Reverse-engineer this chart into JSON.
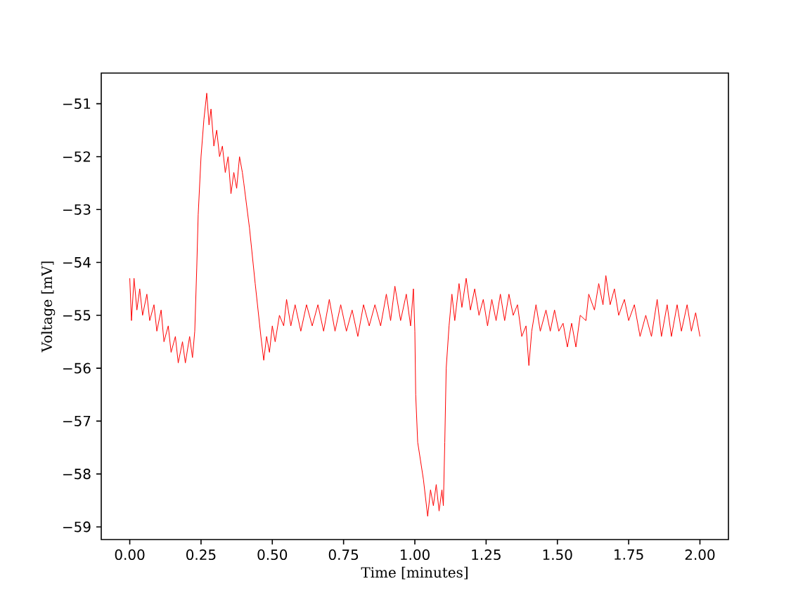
{
  "chart_data": {
    "type": "line",
    "xlabel": "Time [minutes]",
    "ylabel": "Voltage [mV]",
    "color": "#ff0000",
    "xlim": [
      -0.1,
      2.1
    ],
    "ylim": [
      -59.24,
      -50.42
    ],
    "xticks": [
      {
        "value": 0,
        "label": "0.00"
      },
      {
        "value": 0.25,
        "label": "0.25"
      },
      {
        "value": 0.5,
        "label": "0.50"
      },
      {
        "value": 0.75,
        "label": "0.75"
      },
      {
        "value": 1,
        "label": "1.00"
      },
      {
        "value": 1.25,
        "label": "1.25"
      },
      {
        "value": 1.5,
        "label": "1.50"
      },
      {
        "value": 1.75,
        "label": "1.75"
      },
      {
        "value": 2,
        "label": "2.00"
      }
    ],
    "yticks": [
      {
        "value": -59,
        "label": "−59"
      },
      {
        "value": -58,
        "label": "−58"
      },
      {
        "value": -57,
        "label": "−57"
      },
      {
        "value": -56,
        "label": "−56"
      },
      {
        "value": -55,
        "label": "−55"
      },
      {
        "value": -54,
        "label": "−54"
      },
      {
        "value": -53,
        "label": "−53"
      },
      {
        "value": -52,
        "label": "−52"
      },
      {
        "value": -51,
        "label": "−51"
      }
    ],
    "x": [
      0.0,
      0.006,
      0.015,
      0.025,
      0.035,
      0.045,
      0.06,
      0.07,
      0.085,
      0.095,
      0.11,
      0.12,
      0.135,
      0.145,
      0.16,
      0.17,
      0.185,
      0.195,
      0.21,
      0.22,
      0.228,
      0.235,
      0.24,
      0.25,
      0.26,
      0.27,
      0.278,
      0.285,
      0.295,
      0.305,
      0.315,
      0.325,
      0.335,
      0.345,
      0.355,
      0.365,
      0.375,
      0.385,
      0.395,
      0.4,
      0.42,
      0.44,
      0.46,
      0.47,
      0.48,
      0.49,
      0.5,
      0.51,
      0.525,
      0.54,
      0.55,
      0.565,
      0.58,
      0.6,
      0.62,
      0.64,
      0.66,
      0.68,
      0.7,
      0.72,
      0.74,
      0.76,
      0.78,
      0.8,
      0.82,
      0.84,
      0.86,
      0.88,
      0.9,
      0.915,
      0.93,
      0.95,
      0.97,
      0.985,
      0.995,
      1.0,
      1.003,
      1.01,
      1.03,
      1.045,
      1.055,
      1.065,
      1.075,
      1.085,
      1.095,
      1.1,
      1.105,
      1.11,
      1.12,
      1.13,
      1.14,
      1.155,
      1.165,
      1.18,
      1.195,
      1.21,
      1.225,
      1.24,
      1.255,
      1.27,
      1.285,
      1.3,
      1.315,
      1.33,
      1.345,
      1.36,
      1.375,
      1.39,
      1.4,
      1.41,
      1.425,
      1.44,
      1.46,
      1.475,
      1.49,
      1.505,
      1.52,
      1.535,
      1.55,
      1.565,
      1.58,
      1.6,
      1.61,
      1.63,
      1.645,
      1.66,
      1.67,
      1.685,
      1.7,
      1.715,
      1.735,
      1.75,
      1.77,
      1.79,
      1.81,
      1.83,
      1.85,
      1.865,
      1.885,
      1.9,
      1.92,
      1.935,
      1.955,
      1.97,
      1.985,
      2.0
    ],
    "values": [
      -54.3,
      -55.1,
      -54.3,
      -54.9,
      -54.5,
      -55.0,
      -54.6,
      -55.1,
      -54.8,
      -55.3,
      -54.9,
      -55.5,
      -55.2,
      -55.7,
      -55.4,
      -55.9,
      -55.5,
      -55.9,
      -55.4,
      -55.8,
      -55.3,
      -54.1,
      -53.1,
      -52.0,
      -51.3,
      -50.8,
      -51.4,
      -51.1,
      -51.8,
      -51.5,
      -52.0,
      -51.8,
      -52.3,
      -52.0,
      -52.7,
      -52.3,
      -52.6,
      -52.0,
      -52.3,
      -52.5,
      -53.35,
      -54.4,
      -55.4,
      -55.85,
      -55.4,
      -55.7,
      -55.2,
      -55.5,
      -55.0,
      -55.2,
      -54.7,
      -55.2,
      -54.8,
      -55.3,
      -54.8,
      -55.2,
      -54.8,
      -55.3,
      -54.7,
      -55.3,
      -54.8,
      -55.3,
      -54.9,
      -55.4,
      -54.8,
      -55.2,
      -54.8,
      -55.2,
      -54.6,
      -55.1,
      -54.45,
      -55.1,
      -54.6,
      -55.2,
      -54.5,
      -55.3,
      -56.5,
      -57.4,
      -58.1,
      -58.8,
      -58.3,
      -58.6,
      -58.2,
      -58.7,
      -58.3,
      -58.6,
      -57.4,
      -56.0,
      -55.2,
      -54.6,
      -55.1,
      -54.4,
      -54.85,
      -54.3,
      -54.9,
      -54.5,
      -55.0,
      -54.7,
      -55.2,
      -54.7,
      -55.1,
      -54.6,
      -55.1,
      -54.6,
      -55.0,
      -54.8,
      -55.4,
      -55.2,
      -55.95,
      -55.3,
      -54.8,
      -55.3,
      -54.9,
      -55.3,
      -54.9,
      -55.3,
      -55.15,
      -55.6,
      -55.15,
      -55.6,
      -55.0,
      -55.1,
      -54.6,
      -54.9,
      -54.4,
      -54.8,
      -54.25,
      -54.8,
      -54.5,
      -55.0,
      -54.7,
      -55.1,
      -54.8,
      -55.4,
      -55.0,
      -55.4,
      -54.7,
      -55.4,
      -54.8,
      -55.4,
      -54.8,
      -55.3,
      -54.8,
      -55.3,
      -54.95,
      -55.4
    ]
  }
}
